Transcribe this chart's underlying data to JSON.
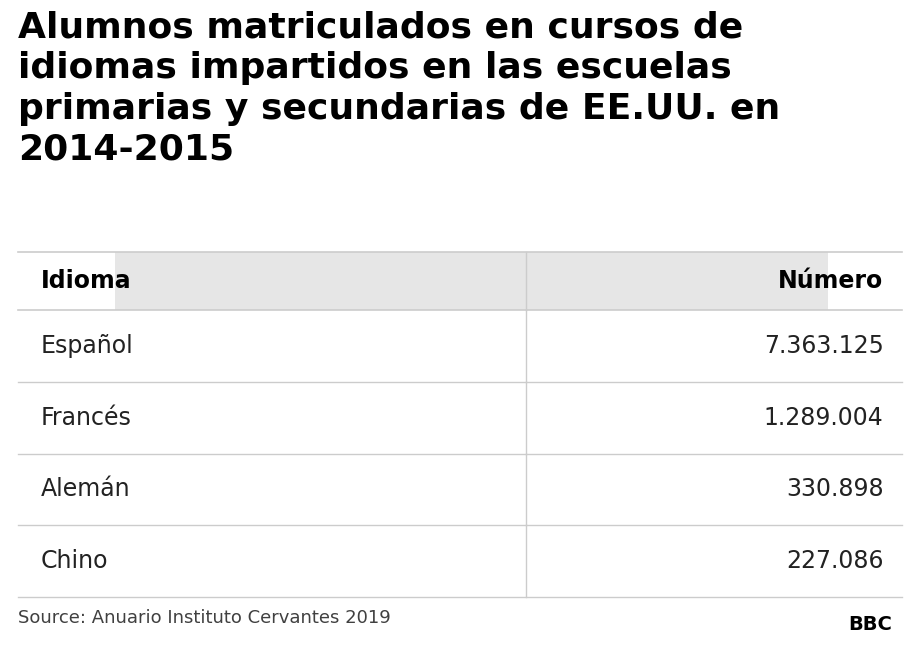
{
  "title": "Alumnos matriculados en cursos de\nidiomas impartidos en las escuelas\nprimarias y secundarias de EE.UU. en\n2014-2015",
  "col_header_left": "Idioma",
  "col_header_right": "Número",
  "rows": [
    [
      "Español",
      "7.363.125"
    ],
    [
      "Francés",
      "1.289.004"
    ],
    [
      "Alemán",
      "330.898"
    ],
    [
      "Chino",
      "227.086"
    ]
  ],
  "source": "Source: Anuario Instituto Cervantes 2019",
  "bbc_label": "BBC",
  "bg_color": "#ffffff",
  "header_row_bg": "#e6e6e6",
  "divider_color": "#cccccc",
  "title_color": "#000000",
  "text_color": "#222222",
  "source_color": "#404040",
  "bbc_box_color": "#bbbbbb",
  "col_split": 0.575,
  "title_fontsize": 26,
  "table_fontsize": 17,
  "source_fontsize": 13
}
